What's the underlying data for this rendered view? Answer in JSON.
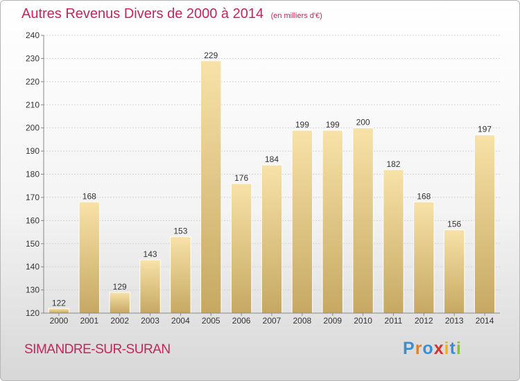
{
  "title": "Autres Revenus Divers de 2000 à 2014",
  "unit_note": "(en milliers d'€)",
  "location": "SIMANDRE-SUR-SURAN",
  "logo": {
    "letters": [
      "P",
      "r",
      "o",
      "x",
      "i",
      "t",
      "i"
    ],
    "colors": [
      "#3b8ed0",
      "#e6801f",
      "#3b8ed0",
      "#d9302e",
      "#f0b21b",
      "#3b8ed0",
      "#8ac13a"
    ]
  },
  "colors": {
    "title": "#c8235d",
    "bar_light": "#f7dea0",
    "bar_dark": "#c6a862"
  },
  "chart_data": {
    "type": "bar",
    "title": "Autres Revenus Divers de 2000 à 2014",
    "xlabel": "",
    "ylabel": "",
    "categories": [
      "2000",
      "2001",
      "2002",
      "2003",
      "2004",
      "2005",
      "2006",
      "2007",
      "2008",
      "2009",
      "2010",
      "2011",
      "2012",
      "2013",
      "2014"
    ],
    "values": [
      122,
      168,
      129,
      143,
      153,
      229,
      176,
      184,
      199,
      199,
      200,
      182,
      168,
      156,
      197
    ],
    "ylim": [
      120,
      240
    ],
    "yticks": [
      120,
      130,
      140,
      150,
      160,
      170,
      180,
      190,
      200,
      210,
      220,
      230,
      240
    ],
    "grid": true,
    "legend": "none"
  }
}
